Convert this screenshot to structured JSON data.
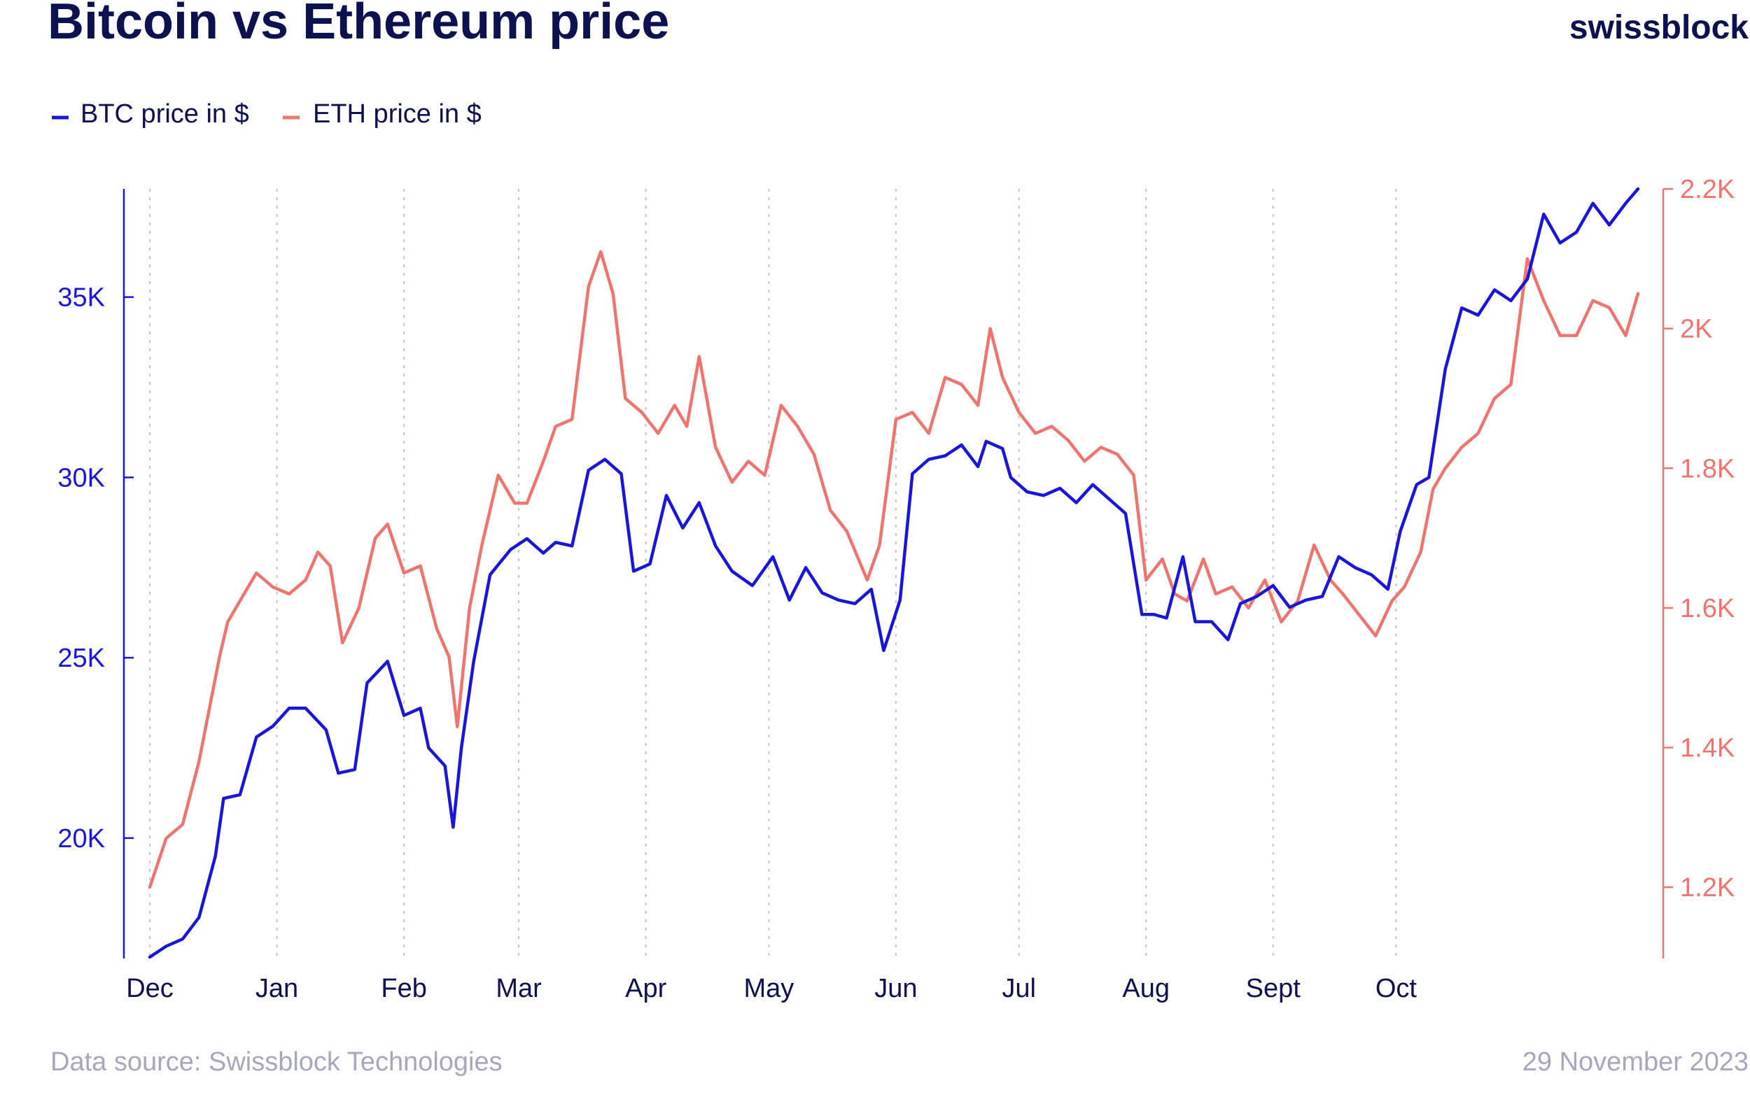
{
  "header": {
    "title": "Bitcoin vs Ethereum price",
    "brand": "swissblock"
  },
  "footer": {
    "source": "Data source: Swissblock Technologies",
    "date": "29 November 2023"
  },
  "colors": {
    "btc": "#1a16d6",
    "eth": "#ec7570",
    "title": "#0d1150",
    "footer": "#a6a7bb",
    "grid": "#c4c4c4"
  },
  "chart_data": {
    "type": "line",
    "title": "Bitcoin vs Ethereum price",
    "legend_position": "top-left",
    "grid": "vertical dotted at month starts",
    "x_axis": {
      "type": "time",
      "range": [
        "2022-12-01",
        "2023-11-29"
      ],
      "ticks": [
        {
          "label": "Dec",
          "date": "2022-12-01"
        },
        {
          "label": "Jan",
          "date": "2023-01-01"
        },
        {
          "label": "Feb",
          "date": "2023-02-01"
        },
        {
          "label": "Mar",
          "date": "2023-03-01"
        },
        {
          "label": "Apr",
          "date": "2023-04-01"
        },
        {
          "label": "May",
          "date": "2023-05-01"
        },
        {
          "label": "Jun",
          "date": "2023-06-01"
        },
        {
          "label": "Jul",
          "date": "2023-07-01"
        },
        {
          "label": "Aug",
          "date": "2023-08-01"
        },
        {
          "label": "Sept",
          "date": "2023-09-01"
        },
        {
          "label": "Oct",
          "date": "2023-10-01"
        }
      ]
    },
    "y_left": {
      "label": "",
      "range": [
        16700,
        38000
      ],
      "ticks": [
        {
          "label": "20K",
          "value": 20000
        },
        {
          "label": "25K",
          "value": 25000
        },
        {
          "label": "30K",
          "value": 30000
        },
        {
          "label": "35K",
          "value": 35000
        }
      ]
    },
    "y_right": {
      "label": "",
      "range": [
        1100,
        2200
      ],
      "ticks": [
        {
          "label": "1.2K",
          "value": 1200
        },
        {
          "label": "1.4K",
          "value": 1400
        },
        {
          "label": "1.6K",
          "value": 1600
        },
        {
          "label": "1.8K",
          "value": 1800
        },
        {
          "label": "2K",
          "value": 2000
        },
        {
          "label": "2.2K",
          "value": 2200
        }
      ]
    },
    "series": [
      {
        "name": "BTC price in $",
        "axis": "left",
        "color": "#1a16d6",
        "points": [
          [
            "2022-12-01",
            16700
          ],
          [
            "2022-12-05",
            17000
          ],
          [
            "2022-12-09",
            17200
          ],
          [
            "2022-12-13",
            17800
          ],
          [
            "2022-12-17",
            19500
          ],
          [
            "2022-12-19",
            21100
          ],
          [
            "2022-12-23",
            21200
          ],
          [
            "2022-12-27",
            22800
          ],
          [
            "2022-12-31",
            23100
          ],
          [
            "2023-01-04",
            23600
          ],
          [
            "2023-01-08",
            23600
          ],
          [
            "2023-01-13",
            23000
          ],
          [
            "2023-01-16",
            21800
          ],
          [
            "2023-01-20",
            21900
          ],
          [
            "2023-01-23",
            24300
          ],
          [
            "2023-01-28",
            24900
          ],
          [
            "2023-02-01",
            23400
          ],
          [
            "2023-02-05",
            23600
          ],
          [
            "2023-02-07",
            22500
          ],
          [
            "2023-02-11",
            22000
          ],
          [
            "2023-02-13",
            20300
          ],
          [
            "2023-02-15",
            22500
          ],
          [
            "2023-02-18",
            24900
          ],
          [
            "2023-02-22",
            27300
          ],
          [
            "2023-02-27",
            28000
          ],
          [
            "2023-03-03",
            28300
          ],
          [
            "2023-03-07",
            27900
          ],
          [
            "2023-03-10",
            28200
          ],
          [
            "2023-03-14",
            28100
          ],
          [
            "2023-03-18",
            30200
          ],
          [
            "2023-03-22",
            30500
          ],
          [
            "2023-03-26",
            30100
          ],
          [
            "2023-03-29",
            27400
          ],
          [
            "2023-04-02",
            27600
          ],
          [
            "2023-04-06",
            29500
          ],
          [
            "2023-04-10",
            28600
          ],
          [
            "2023-04-14",
            29300
          ],
          [
            "2023-04-18",
            28100
          ],
          [
            "2023-04-22",
            27400
          ],
          [
            "2023-04-27",
            27000
          ],
          [
            "2023-05-02",
            27800
          ],
          [
            "2023-05-06",
            26600
          ],
          [
            "2023-05-10",
            27500
          ],
          [
            "2023-05-14",
            26800
          ],
          [
            "2023-05-18",
            26600
          ],
          [
            "2023-05-22",
            26500
          ],
          [
            "2023-05-26",
            26900
          ],
          [
            "2023-05-29",
            25200
          ],
          [
            "2023-06-02",
            26600
          ],
          [
            "2023-06-05",
            30100
          ],
          [
            "2023-06-09",
            30500
          ],
          [
            "2023-06-13",
            30600
          ],
          [
            "2023-06-17",
            30900
          ],
          [
            "2023-06-21",
            30300
          ],
          [
            "2023-06-23",
            31000
          ],
          [
            "2023-06-27",
            30800
          ],
          [
            "2023-06-29",
            30000
          ],
          [
            "2023-07-03",
            29600
          ],
          [
            "2023-07-07",
            29500
          ],
          [
            "2023-07-11",
            29700
          ],
          [
            "2023-07-15",
            29300
          ],
          [
            "2023-07-19",
            29800
          ],
          [
            "2023-07-23",
            29400
          ],
          [
            "2023-07-27",
            29000
          ],
          [
            "2023-07-31",
            26200
          ],
          [
            "2023-08-03",
            26200
          ],
          [
            "2023-08-06",
            26100
          ],
          [
            "2023-08-10",
            27800
          ],
          [
            "2023-08-13",
            26000
          ],
          [
            "2023-08-17",
            26000
          ],
          [
            "2023-08-21",
            25500
          ],
          [
            "2023-08-24",
            26500
          ],
          [
            "2023-08-28",
            26700
          ],
          [
            "2023-09-01",
            27000
          ],
          [
            "2023-09-05",
            26400
          ],
          [
            "2023-09-09",
            26600
          ],
          [
            "2023-09-13",
            26700
          ],
          [
            "2023-09-17",
            27800
          ],
          [
            "2023-09-21",
            27500
          ],
          [
            "2023-09-25",
            27300
          ],
          [
            "2023-09-29",
            26900
          ],
          [
            "2023-10-02",
            28500
          ],
          [
            "2023-10-06",
            29800
          ],
          [
            "2023-10-09",
            30000
          ],
          [
            "2023-10-13",
            33000
          ],
          [
            "2023-10-17",
            34700
          ],
          [
            "2023-10-21",
            34500
          ],
          [
            "2023-10-25",
            35200
          ],
          [
            "2023-10-29",
            34900
          ],
          [
            "2023-11-02",
            35500
          ],
          [
            "2023-11-06",
            37300
          ],
          [
            "2023-11-10",
            36500
          ],
          [
            "2023-11-14",
            36800
          ],
          [
            "2023-11-18",
            37600
          ],
          [
            "2023-11-22",
            37000
          ],
          [
            "2023-11-26",
            37600
          ],
          [
            "2023-11-29",
            38000
          ]
        ]
      },
      {
        "name": "ETH price in $",
        "axis": "right",
        "color": "#ec7570",
        "points": [
          [
            "2022-12-01",
            1200
          ],
          [
            "2022-12-05",
            1270
          ],
          [
            "2022-12-09",
            1290
          ],
          [
            "2022-12-13",
            1380
          ],
          [
            "2022-12-15",
            1440
          ],
          [
            "2022-12-18",
            1530
          ],
          [
            "2022-12-20",
            1580
          ],
          [
            "2022-12-23",
            1610
          ],
          [
            "2022-12-27",
            1650
          ],
          [
            "2022-12-31",
            1630
          ],
          [
            "2023-01-04",
            1620
          ],
          [
            "2023-01-08",
            1640
          ],
          [
            "2023-01-11",
            1680
          ],
          [
            "2023-01-14",
            1660
          ],
          [
            "2023-01-17",
            1550
          ],
          [
            "2023-01-21",
            1600
          ],
          [
            "2023-01-25",
            1700
          ],
          [
            "2023-01-28",
            1720
          ],
          [
            "2023-02-01",
            1650
          ],
          [
            "2023-02-05",
            1660
          ],
          [
            "2023-02-09",
            1570
          ],
          [
            "2023-02-12",
            1530
          ],
          [
            "2023-02-14",
            1430
          ],
          [
            "2023-02-17",
            1600
          ],
          [
            "2023-02-20",
            1690
          ],
          [
            "2023-02-24",
            1790
          ],
          [
            "2023-02-28",
            1750
          ],
          [
            "2023-03-03",
            1750
          ],
          [
            "2023-03-07",
            1810
          ],
          [
            "2023-03-10",
            1860
          ],
          [
            "2023-03-14",
            1870
          ],
          [
            "2023-03-18",
            2060
          ],
          [
            "2023-03-21",
            2110
          ],
          [
            "2023-03-24",
            2050
          ],
          [
            "2023-03-27",
            1900
          ],
          [
            "2023-03-31",
            1880
          ],
          [
            "2023-04-04",
            1850
          ],
          [
            "2023-04-08",
            1890
          ],
          [
            "2023-04-11",
            1860
          ],
          [
            "2023-04-14",
            1960
          ],
          [
            "2023-04-18",
            1830
          ],
          [
            "2023-04-22",
            1780
          ],
          [
            "2023-04-26",
            1810
          ],
          [
            "2023-04-30",
            1790
          ],
          [
            "2023-05-04",
            1890
          ],
          [
            "2023-05-08",
            1860
          ],
          [
            "2023-05-12",
            1820
          ],
          [
            "2023-05-16",
            1740
          ],
          [
            "2023-05-20",
            1710
          ],
          [
            "2023-05-25",
            1640
          ],
          [
            "2023-05-28",
            1690
          ],
          [
            "2023-06-01",
            1870
          ],
          [
            "2023-06-05",
            1880
          ],
          [
            "2023-06-09",
            1850
          ],
          [
            "2023-06-13",
            1930
          ],
          [
            "2023-06-17",
            1920
          ],
          [
            "2023-06-21",
            1890
          ],
          [
            "2023-06-24",
            2000
          ],
          [
            "2023-06-27",
            1930
          ],
          [
            "2023-07-01",
            1880
          ],
          [
            "2023-07-05",
            1850
          ],
          [
            "2023-07-09",
            1860
          ],
          [
            "2023-07-13",
            1840
          ],
          [
            "2023-07-17",
            1810
          ],
          [
            "2023-07-21",
            1830
          ],
          [
            "2023-07-25",
            1820
          ],
          [
            "2023-07-29",
            1790
          ],
          [
            "2023-08-01",
            1640
          ],
          [
            "2023-08-05",
            1670
          ],
          [
            "2023-08-08",
            1620
          ],
          [
            "2023-08-11",
            1610
          ],
          [
            "2023-08-15",
            1670
          ],
          [
            "2023-08-18",
            1620
          ],
          [
            "2023-08-22",
            1630
          ],
          [
            "2023-08-26",
            1600
          ],
          [
            "2023-08-30",
            1640
          ],
          [
            "2023-09-03",
            1580
          ],
          [
            "2023-09-07",
            1610
          ],
          [
            "2023-09-11",
            1690
          ],
          [
            "2023-09-15",
            1640
          ],
          [
            "2023-09-18",
            1620
          ],
          [
            "2023-09-22",
            1590
          ],
          [
            "2023-09-26",
            1560
          ],
          [
            "2023-09-30",
            1610
          ],
          [
            "2023-10-03",
            1630
          ],
          [
            "2023-10-07",
            1680
          ],
          [
            "2023-10-10",
            1770
          ],
          [
            "2023-10-13",
            1800
          ],
          [
            "2023-10-17",
            1830
          ],
          [
            "2023-10-21",
            1850
          ],
          [
            "2023-10-25",
            1900
          ],
          [
            "2023-10-29",
            1920
          ],
          [
            "2023-11-02",
            2100
          ],
          [
            "2023-11-06",
            2040
          ],
          [
            "2023-11-10",
            1990
          ],
          [
            "2023-11-14",
            1990
          ],
          [
            "2023-11-18",
            2040
          ],
          [
            "2023-11-22",
            2030
          ],
          [
            "2023-11-26",
            1990
          ],
          [
            "2023-11-29",
            2050
          ]
        ]
      }
    ]
  }
}
